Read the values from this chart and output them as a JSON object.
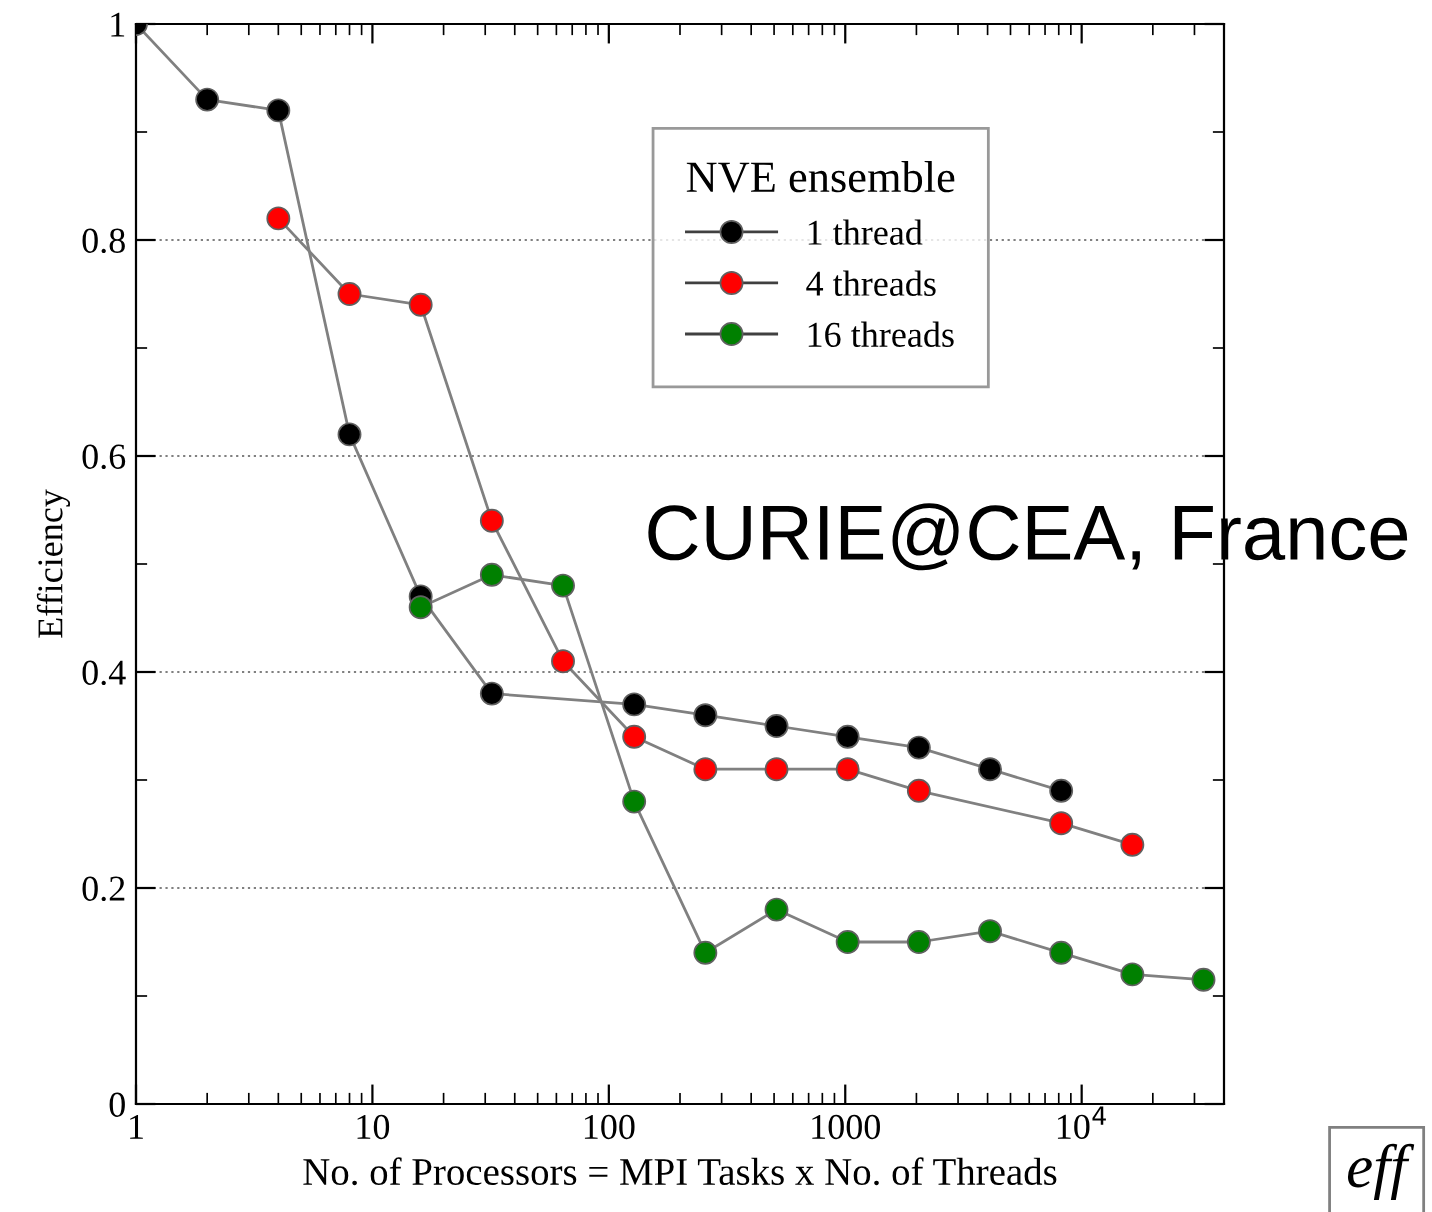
{
  "chart_data": {
    "type": "line",
    "xlabel": "No. of Processors = MPI Tasks x No. of Threads",
    "ylabel": "Efficiency",
    "legend_title": "NVE ensemble",
    "log": "x",
    "xlim": [
      1,
      40000
    ],
    "xticks": [
      1,
      10,
      100,
      1000,
      {
        "value": 10000,
        "label": "10$^{4}$"
      }
    ],
    "ylim": [
      0,
      1
    ],
    "yticks": [
      0,
      0.2,
      0.4,
      0.6,
      0.8,
      1
    ],
    "grid": "y",
    "legend": "top right",
    "marker": "circle",
    "line_style": "solid",
    "series": [
      {
        "name": "1 thread",
        "color": "#000000",
        "x": [
          1,
          2,
          4,
          8,
          16,
          32,
          128,
          256,
          512,
          1024,
          2048,
          4096,
          8192
        ],
        "values": [
          1.0,
          0.93,
          0.92,
          0.62,
          0.47,
          0.38,
          0.37,
          0.36,
          0.35,
          0.34,
          0.33,
          0.31,
          0.29
        ]
      },
      {
        "name": "4 threads",
        "color": "#ff0000",
        "x": [
          4,
          8,
          16,
          32,
          64,
          128,
          256,
          512,
          1024,
          2048,
          8192,
          16384
        ],
        "values": [
          0.82,
          0.75,
          0.74,
          0.54,
          0.41,
          0.34,
          0.31,
          0.31,
          0.31,
          0.29,
          0.26,
          0.24
        ]
      },
      {
        "name": "16 threads",
        "color": "#008000",
        "x": [
          16,
          32,
          64,
          128,
          256,
          512,
          1024,
          2048,
          4096,
          8192,
          16384,
          32768
        ],
        "values": [
          0.46,
          0.49,
          0.48,
          0.28,
          0.14,
          0.18,
          0.15,
          0.15,
          0.16,
          0.14,
          0.12,
          0.115
        ]
      }
    ],
    "annotations": [
      "CURIE@CEA, France",
      "eff"
    ]
  }
}
